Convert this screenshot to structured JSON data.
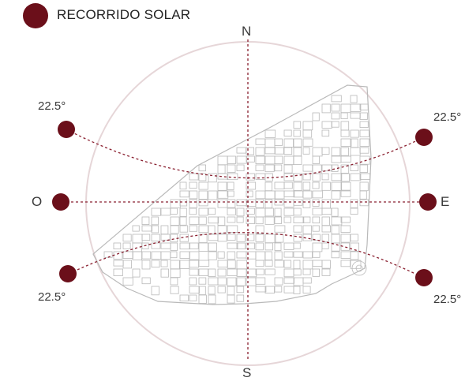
{
  "legend": {
    "label": "RECORRIDO SOLAR"
  },
  "cardinals": {
    "north": "N",
    "south": "S",
    "east": "E",
    "west": "O"
  },
  "angles": {
    "upper_left": "22.5°",
    "upper_right": "22.5°",
    "lower_left": "22.5°",
    "lower_right": "22.5°"
  },
  "colors": {
    "sun": "#6b0f1a",
    "path": "#8a2030",
    "circle": "#e6d6d8",
    "map": "#b9b9b9"
  },
  "icons": {
    "sun": "sun-dot-icon",
    "map": "city-map-icon"
  }
}
